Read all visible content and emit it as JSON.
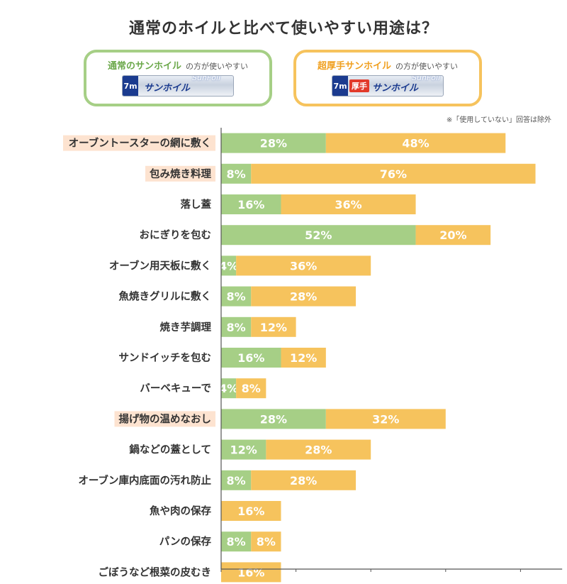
{
  "title": "通常のホイルと比べて使いやすい用途は？",
  "legend": {
    "regular": {
      "name": "通常のサンホイル",
      "suffix": "の方が使いやすい",
      "package_length": "7m",
      "package_name": "サンホイル",
      "package_brand": "SunFoil"
    },
    "thick": {
      "name": "超厚手サンホイル",
      "suffix": "の方が使いやすい",
      "package_length": "7m",
      "package_tag": "厚手",
      "package_name": "サンホイル",
      "package_brand": "SunFoil"
    }
  },
  "footnote": "※「使用していない」回答は除外",
  "colors": {
    "regular": "#a6cf86",
    "thick": "#f6c35d",
    "highlight_bg": "#fde3d0",
    "text_orange": "#f0a020",
    "text_green": "#6ba84a",
    "text_default": "#333333",
    "axis": "#555555"
  },
  "chart_data": {
    "type": "bar",
    "orientation": "horizontal",
    "stacked": true,
    "title": "通常のホイルと比べて使いやすい用途は？",
    "categories": [
      "オーブントースターの網に敷く",
      "包み焼き料理",
      "落し蓋",
      "おにぎりを包む",
      "オーブン用天板に敷く",
      "魚焼きグリルに敷く",
      "焼き芋調理",
      "サンドイッチを包む",
      "バーベキューで",
      "揚げ物の温めなおし",
      "鍋などの蓋として",
      "オーブン庫内底面の汚れ防止",
      "魚や肉の保存",
      "パンの保存",
      "ごぼうなど根菜の皮むき"
    ],
    "category_styles": [
      "orange-highlight",
      "orange-highlight",
      "default",
      "green",
      "default",
      "default",
      "default",
      "default",
      "default",
      "orange-highlight",
      "default",
      "default",
      "default",
      "default",
      "default"
    ],
    "series": [
      {
        "name": "通常のサンホイルの方が使いやすい",
        "values": [
          28,
          8,
          16,
          52,
          4,
          8,
          8,
          16,
          4,
          28,
          12,
          8,
          0,
          8,
          0
        ]
      },
      {
        "name": "超厚手サンホイルの方が使いやすい",
        "values": [
          48,
          76,
          36,
          20,
          36,
          28,
          12,
          12,
          8,
          32,
          28,
          28,
          16,
          8,
          16
        ]
      }
    ],
    "value_suffix": "%",
    "xlim": [
      0,
      90
    ],
    "xticks": [
      0,
      20,
      40,
      60,
      80
    ],
    "legend_position": "top"
  }
}
